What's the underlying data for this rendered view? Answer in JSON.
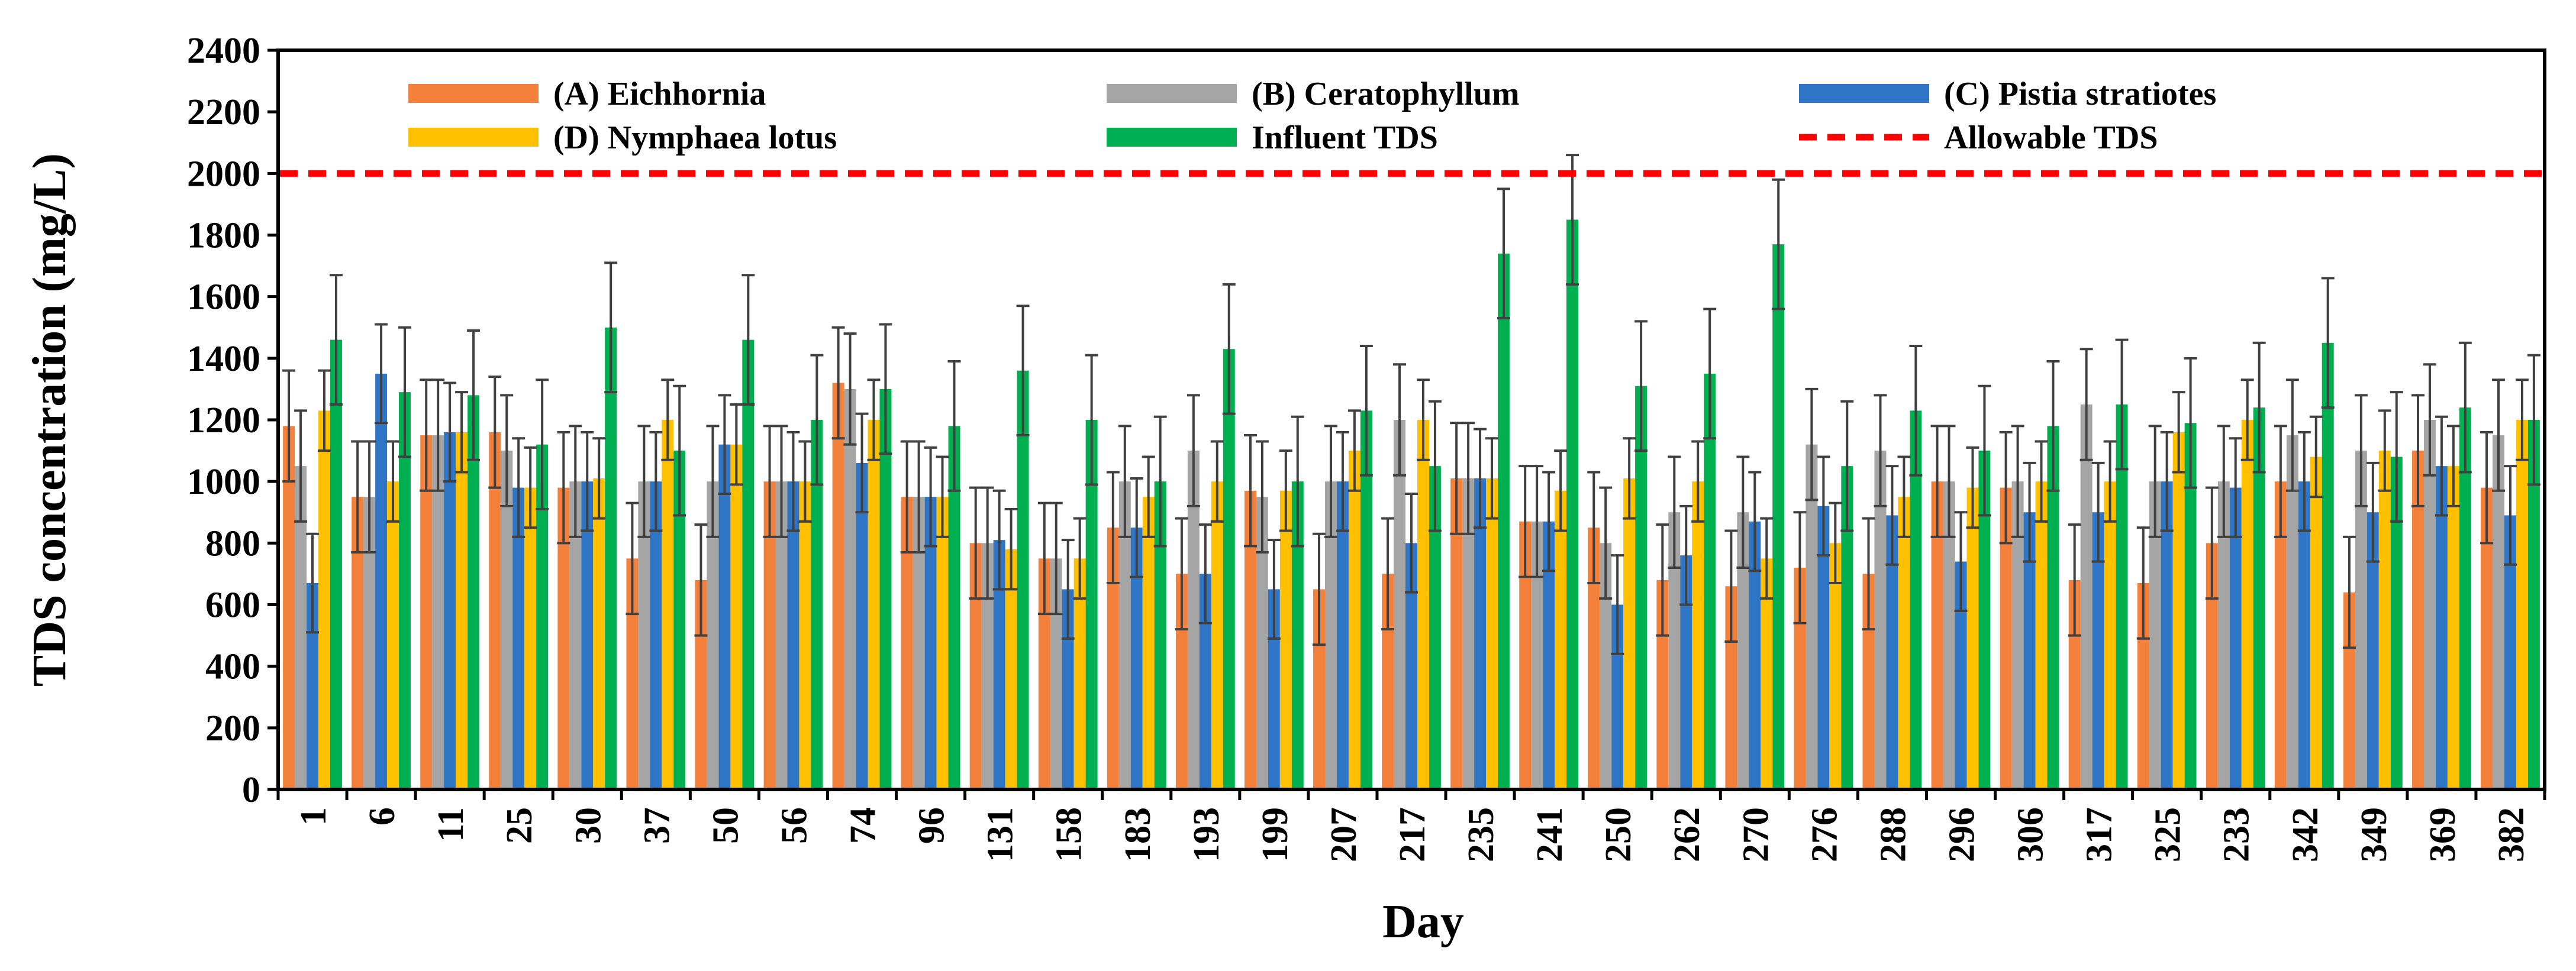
{
  "chart_data": {
    "type": "bar",
    "xlabel": "Day",
    "ylabel": "TDS concentration (mg/L)",
    "ylim": [
      0,
      2400
    ],
    "yticks": [
      0,
      200,
      400,
      600,
      800,
      1000,
      1200,
      1400,
      1600,
      1800,
      2000,
      2200,
      2400
    ],
    "grid": false,
    "legend_position": "top",
    "categories": [
      "1",
      "6",
      "11",
      "25",
      "30",
      "37",
      "50",
      "56",
      "74",
      "96",
      "131",
      "158",
      "183",
      "193",
      "199",
      "207",
      "217",
      "235",
      "241",
      "250",
      "262",
      "270",
      "276",
      "288",
      "296",
      "306",
      "317",
      "325",
      "233",
      "342",
      "349",
      "369",
      "382"
    ],
    "series": [
      {
        "name": "(A) Eichhornia",
        "color": "#F4813B",
        "values": [
          1180,
          950,
          1150,
          1160,
          980,
          750,
          680,
          1000,
          1320,
          950,
          800,
          750,
          850,
          700,
          970,
          650,
          700,
          1010,
          870,
          850,
          680,
          660,
          720,
          700,
          1000,
          980,
          680,
          670,
          800,
          1000,
          640,
          1100,
          980
        ],
        "errors": [
          180,
          180,
          180,
          180,
          180,
          180,
          180,
          180,
          180,
          180,
          180,
          180,
          180,
          180,
          180,
          180,
          180,
          180,
          180,
          180,
          180,
          180,
          180,
          180,
          180,
          180,
          180,
          180,
          180,
          180,
          180,
          180,
          180
        ]
      },
      {
        "name": "(B) Ceratophyllum",
        "color": "#A5A5A5",
        "values": [
          1050,
          950,
          1150,
          1100,
          1000,
          1000,
          1000,
          1000,
          1300,
          950,
          800,
          750,
          1000,
          1100,
          950,
          1000,
          1200,
          1010,
          870,
          800,
          900,
          900,
          1120,
          1100,
          1000,
          1000,
          1250,
          1000,
          1000,
          1150,
          1100,
          1200,
          1150
        ],
        "errors": [
          180,
          180,
          180,
          180,
          180,
          180,
          180,
          180,
          180,
          180,
          180,
          180,
          180,
          180,
          180,
          180,
          180,
          180,
          180,
          180,
          180,
          180,
          180,
          180,
          180,
          180,
          180,
          180,
          180,
          180,
          180,
          180,
          180
        ]
      },
      {
        "name": "(C) Pistia stratiotes",
        "color": "#2E75C6",
        "values": [
          670,
          1350,
          1160,
          980,
          1000,
          1000,
          1120,
          1000,
          1060,
          950,
          810,
          650,
          850,
          700,
          650,
          1000,
          800,
          1010,
          870,
          600,
          760,
          870,
          920,
          890,
          740,
          900,
          900,
          1000,
          980,
          1000,
          900,
          1050,
          890
        ],
        "errors": [
          160,
          160,
          160,
          160,
          160,
          160,
          160,
          160,
          160,
          160,
          160,
          160,
          160,
          160,
          160,
          160,
          160,
          160,
          160,
          160,
          160,
          160,
          160,
          160,
          160,
          160,
          160,
          160,
          160,
          160,
          160,
          160,
          160
        ]
      },
      {
        "name": "(D) Nymphaea lotus",
        "color": "#FFC000",
        "values": [
          1230,
          1000,
          1160,
          980,
          1010,
          1200,
          1120,
          1000,
          1200,
          950,
          780,
          750,
          950,
          1000,
          970,
          1100,
          1200,
          1010,
          970,
          1010,
          1000,
          750,
          800,
          950,
          980,
          1000,
          1000,
          1160,
          1200,
          1080,
          1100,
          1050,
          1200
        ],
        "errors": [
          130,
          130,
          130,
          130,
          130,
          130,
          130,
          130,
          130,
          130,
          130,
          130,
          130,
          130,
          130,
          130,
          130,
          130,
          130,
          130,
          130,
          130,
          130,
          130,
          130,
          130,
          130,
          130,
          130,
          130,
          130,
          130,
          130
        ]
      },
      {
        "name": "Influent TDS",
        "color": "#00B050",
        "values": [
          1460,
          1290,
          1280,
          1120,
          1500,
          1100,
          1460,
          1200,
          1300,
          1180,
          1360,
          1200,
          1000,
          1430,
          1000,
          1230,
          1050,
          1740,
          1850,
          1310,
          1350,
          1770,
          1050,
          1230,
          1100,
          1180,
          1250,
          1190,
          1240,
          1450,
          1080,
          1240,
          1200
        ],
        "errors": [
          210,
          210,
          210,
          210,
          210,
          210,
          210,
          210,
          210,
          210,
          210,
          210,
          210,
          210,
          210,
          210,
          210,
          210,
          210,
          210,
          210,
          210,
          210,
          210,
          210,
          210,
          210,
          210,
          210,
          210,
          210,
          210,
          210
        ]
      }
    ],
    "reference_lines": [
      {
        "name": "Allowable TDS",
        "value": 2000,
        "color": "#FF0000",
        "style": "dashed"
      }
    ]
  }
}
